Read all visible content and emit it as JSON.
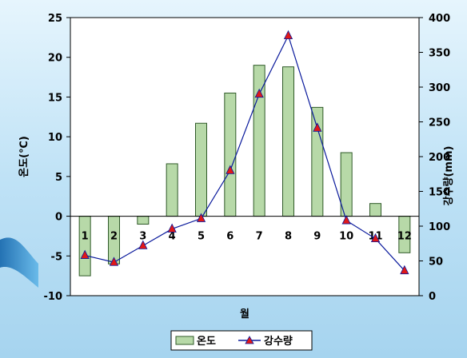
{
  "chart_data": {
    "type": "bar",
    "categories": [
      "1",
      "2",
      "3",
      "4",
      "5",
      "6",
      "7",
      "8",
      "9",
      "10",
      "11",
      "12"
    ],
    "series": [
      {
        "name": "온도",
        "type": "bar",
        "axis": "left",
        "values": [
          -7.5,
          -6.0,
          -1.0,
          6.6,
          11.7,
          15.5,
          19.0,
          18.8,
          13.7,
          8.0,
          1.6,
          -4.6
        ]
      },
      {
        "name": "강수량",
        "type": "line",
        "axis": "right",
        "values": [
          58,
          48,
          72,
          96,
          111,
          180,
          290,
          374,
          241,
          108,
          82,
          36
        ]
      }
    ],
    "xlabel": "월",
    "ylabel": "온도(℃)",
    "y2label": "강수량(mm)",
    "ylim": [
      -10,
      25
    ],
    "y2lim": [
      0,
      400
    ],
    "yticks": [
      "25",
      "20",
      "15",
      "10",
      "5",
      "0",
      "-5",
      "-10"
    ],
    "y2ticks": [
      "400",
      "350",
      "300",
      "250",
      "200",
      "150",
      "100",
      "50",
      "0"
    ],
    "legend": {
      "position": "bottom",
      "items": [
        "온도",
        "강수량"
      ]
    },
    "colors": {
      "bar_fill": "#b7d9a8",
      "bar_stroke": "#2f5a28",
      "line": "#0a1a9c",
      "marker": "#e01818",
      "plot_bg": "#ffffff",
      "page_bg": "#cfe9f8"
    }
  }
}
